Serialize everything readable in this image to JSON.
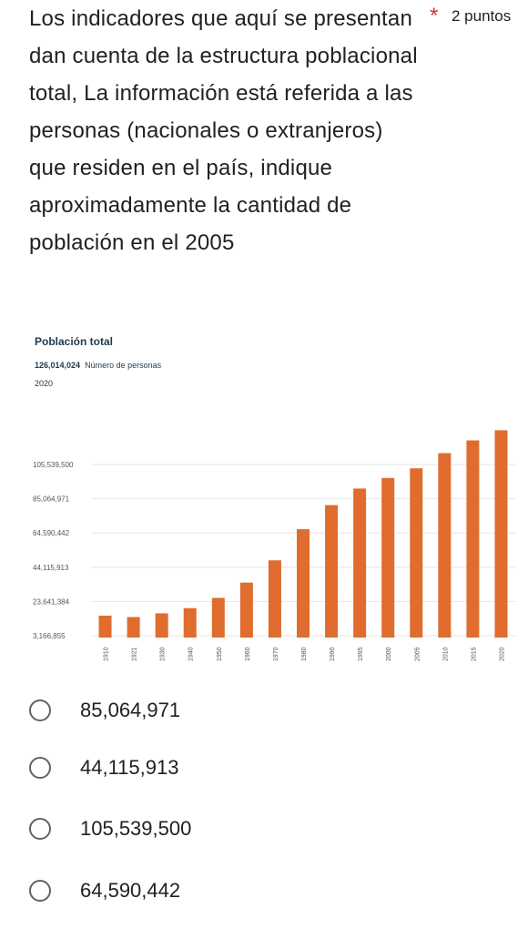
{
  "question": {
    "text": "Los indicadores que aquí se presentan dan cuenta de la estructura poblacional total,  La información está referida a las personas (nacionales o extranjeros) que residen en el país, indique aproximadamente la cantidad de población en el 2005",
    "required_mark": "*",
    "points": "2 puntos"
  },
  "chart_header": {
    "title": "Población total",
    "value": "126,014,024",
    "unit": "Número de personas",
    "year": "2020"
  },
  "chart_data": {
    "type": "bar",
    "title": "Población total",
    "categories": [
      "1910",
      "1921",
      "1930",
      "1940",
      "1950",
      "1960",
      "1970",
      "1980",
      "1990",
      "1995",
      "2000",
      "2005",
      "2010",
      "2015",
      "2020"
    ],
    "values": [
      15160369,
      14334780,
      16552722,
      19653552,
      25791017,
      34923129,
      48225238,
      66846833,
      81249645,
      91158290,
      97483412,
      103263388,
      112336538,
      119938473,
      126014024
    ],
    "yticks": [
      "3,166,855",
      "23,641,384",
      "44,115,913",
      "64,590,442",
      "85,064,971",
      "105,539,500"
    ],
    "ytick_values": [
      3166855,
      23641384,
      44115913,
      64590442,
      85064971,
      105539500
    ],
    "bar_color": "#e06c2e"
  },
  "options": [
    {
      "label": "85,064,971"
    },
    {
      "label": "44,115,913"
    },
    {
      "label": "105,539,500"
    },
    {
      "label": "64,590,442"
    }
  ]
}
